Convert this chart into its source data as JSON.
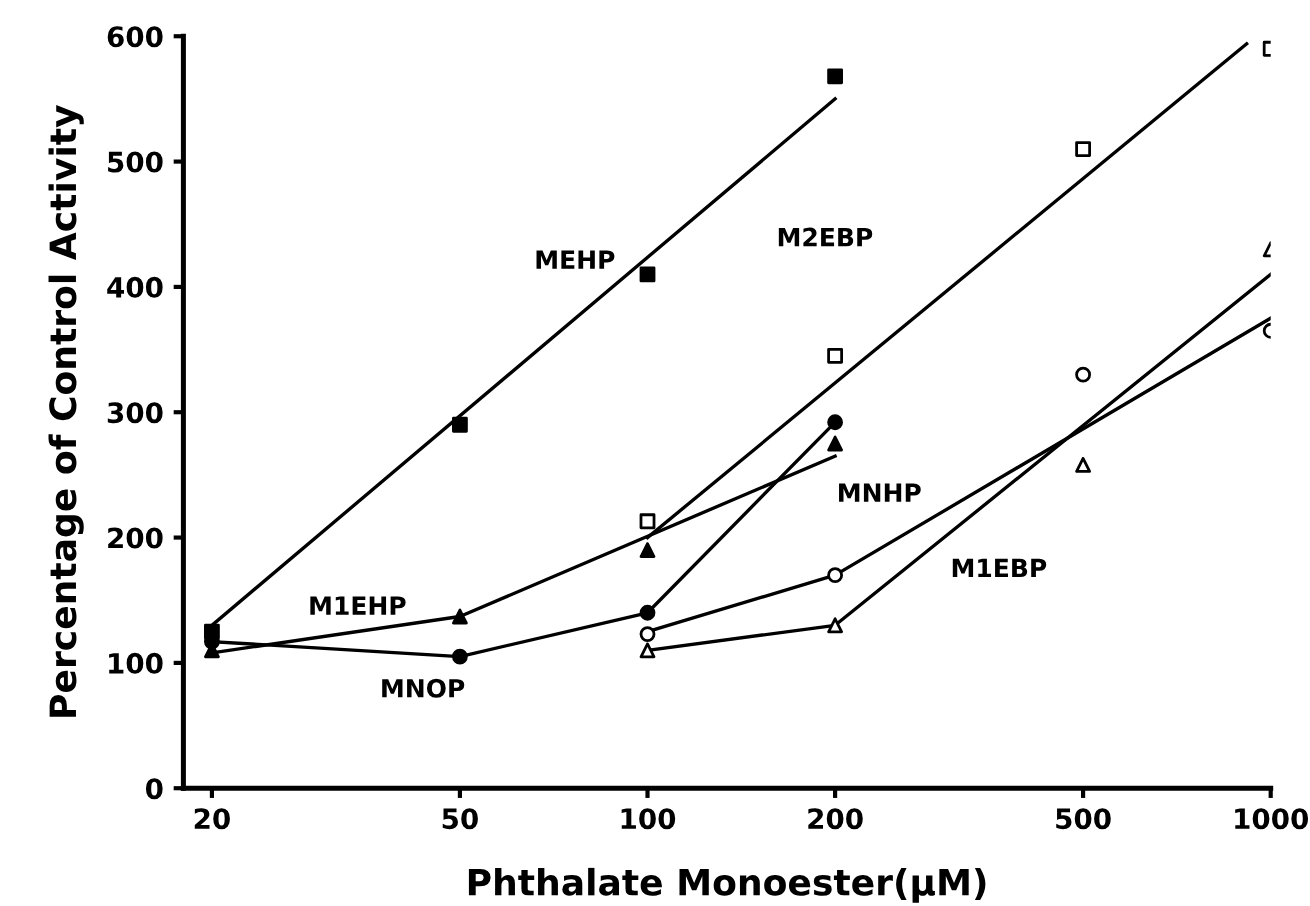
{
  "chart_data": {
    "type": "scatter",
    "xlabel": "Phthalate Monoester(μM)",
    "ylabel": "Percentage of Control Activity",
    "log": "x",
    "xlim": [
      18,
      1000
    ],
    "xticks": [
      20,
      50,
      100,
      200,
      500,
      1000
    ],
    "ylim": [
      0,
      600
    ],
    "yticks": [
      0,
      100,
      200,
      300,
      400,
      500,
      600
    ],
    "grid": false,
    "legend": false,
    "series": [
      {
        "marker": "square",
        "color": "#000000",
        "x": [
          20,
          50,
          100,
          200
        ],
        "values": [
          125,
          290,
          410,
          568
        ]
      },
      {
        "type": "line",
        "marker": "none",
        "color": "#000000",
        "x": [
          20,
          200
        ],
        "values": [
          130,
          550
        ]
      },
      {
        "marker": "square",
        "color": "#ffffff",
        "x": [
          100,
          200,
          500,
          1000
        ],
        "values": [
          213,
          345,
          510,
          590
        ]
      },
      {
        "type": "line",
        "marker": "none",
        "color": "#000000",
        "x": [
          100,
          915
        ],
        "values": [
          200,
          594
        ]
      },
      {
        "marker": "triangle",
        "color": "#000000",
        "x": [
          20,
          50,
          100,
          200
        ],
        "values": [
          110,
          137,
          190,
          275
        ]
      },
      {
        "type": "line",
        "marker": "none",
        "color": "#000000",
        "x": [
          20,
          50,
          200
        ],
        "values": [
          108,
          137,
          265
        ]
      },
      {
        "marker": "circle",
        "color": "#000000",
        "x": [
          20,
          50,
          100,
          200
        ],
        "values": [
          117,
          105,
          140,
          292
        ]
      },
      {
        "type": "line",
        "marker": "none",
        "color": "#000000",
        "x": [
          20,
          50,
          100,
          200
        ],
        "values": [
          117,
          105,
          140,
          292
        ]
      },
      {
        "marker": "circle",
        "color": "#ffffff",
        "x": [
          100,
          200,
          500,
          1000
        ],
        "values": [
          123,
          170,
          330,
          365
        ]
      },
      {
        "type": "line",
        "marker": "none",
        "color": "#000000",
        "x": [
          100,
          200,
          1000
        ],
        "values": [
          125,
          170,
          375
        ]
      },
      {
        "marker": "triangle",
        "color": "#ffffff",
        "x": [
          100,
          200,
          500,
          1000
        ],
        "values": [
          110,
          130,
          258,
          430
        ]
      },
      {
        "type": "line",
        "marker": "none",
        "color": "#000000",
        "x": [
          100,
          200,
          1000
        ],
        "values": [
          110,
          130,
          410
        ]
      }
    ],
    "annotations": [
      "MEHP",
      "M2EBP",
      "M1EHP",
      "MNOP",
      "MNHP",
      "M1EBP"
    ]
  }
}
